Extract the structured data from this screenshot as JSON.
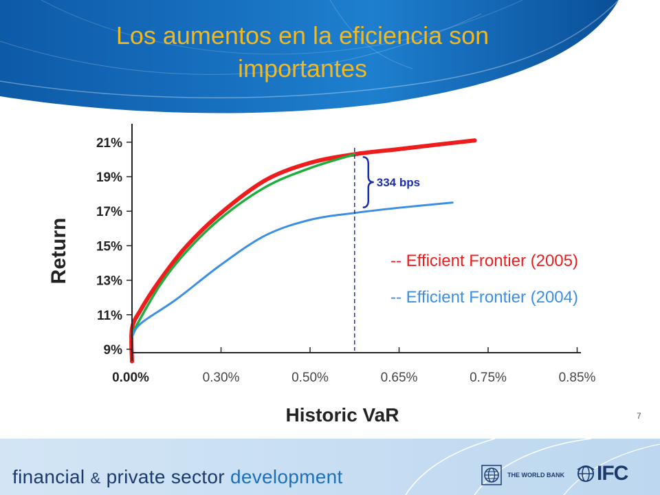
{
  "slide": {
    "title_line1": "Los aumentos en la eficiencia son",
    "title_line2": "importantes",
    "number": "7"
  },
  "footer": {
    "word1": "financial",
    "amp": "&",
    "word2": "private sector",
    "word3": "development",
    "world_bank": "THE WORLD BANK",
    "ifc": "IFC",
    "world_bank_logo_icon": "globe-icon",
    "ifc_logo_icon": "globe-emblem-icon"
  },
  "colors": {
    "title": "#f2b820",
    "header_blue": "#0a63b4",
    "series_2005": "#ee1c1c",
    "series_2004": "#3a8ee6",
    "overlay": "#1fae3c",
    "annotation": "#1c2ea8"
  },
  "chart_data": {
    "type": "line",
    "xlabel": "Historic VaR",
    "ylabel": "Return",
    "x_tick_labels": [
      "0.00%",
      "0.30%",
      "0.50%",
      "0.65%",
      "0.75%",
      "0.85%"
    ],
    "y_tick_labels": [
      "9%",
      "11%",
      "13%",
      "15%",
      "17%",
      "19%",
      "21%"
    ],
    "y_ticks": [
      9,
      11,
      13,
      15,
      17,
      19,
      21
    ],
    "ylim": [
      8.2,
      21.8
    ],
    "x_scale": "categorical, evenly spaced tick labels",
    "legend": [
      {
        "label": "-- Efficient Frontier (2005)",
        "color": "#ee1c1c"
      },
      {
        "label": "-- Efficient Frontier (2004)",
        "color": "#3a8ee6"
      }
    ],
    "legend_placement": "right-middle",
    "grid": false,
    "series": [
      {
        "color": "#ee1c1c",
        "points": [
          [
            0,
            8.3
          ],
          [
            0,
            10.2
          ],
          [
            0.1,
            11.3
          ],
          [
            0.3,
            12.9
          ],
          [
            0.6,
            14.9
          ],
          [
            1.0,
            16.9
          ],
          [
            1.5,
            18.8
          ],
          [
            2.0,
            19.8
          ],
          [
            2.5,
            20.3
          ],
          [
            3.0,
            20.6
          ],
          [
            3.5,
            20.9
          ],
          [
            3.85,
            21.1
          ]
        ]
      },
      {
        "color": "#1fae3c",
        "points": [
          [
            0,
            9.9
          ],
          [
            0.3,
            12.6
          ],
          [
            0.6,
            14.6
          ],
          [
            1.0,
            16.6
          ],
          [
            1.5,
            18.4
          ],
          [
            2.0,
            19.5
          ],
          [
            2.5,
            20.3
          ]
        ]
      },
      {
        "color": "#3a8ee6",
        "points": [
          [
            0,
            9.7
          ],
          [
            0.1,
            10.5
          ],
          [
            0.5,
            11.9
          ],
          [
            1.0,
            13.9
          ],
          [
            1.5,
            15.6
          ],
          [
            2.0,
            16.5
          ],
          [
            2.5,
            16.9
          ],
          [
            3.0,
            17.2
          ],
          [
            3.6,
            17.5
          ]
        ]
      }
    ],
    "reference_line": {
      "x": 2.5,
      "style": "dashed",
      "color": "#1c2ea8"
    },
    "annotation": {
      "text": "334 bps",
      "x": 2.5,
      "y_top": 20.3,
      "y_bottom": 16.9
    }
  }
}
